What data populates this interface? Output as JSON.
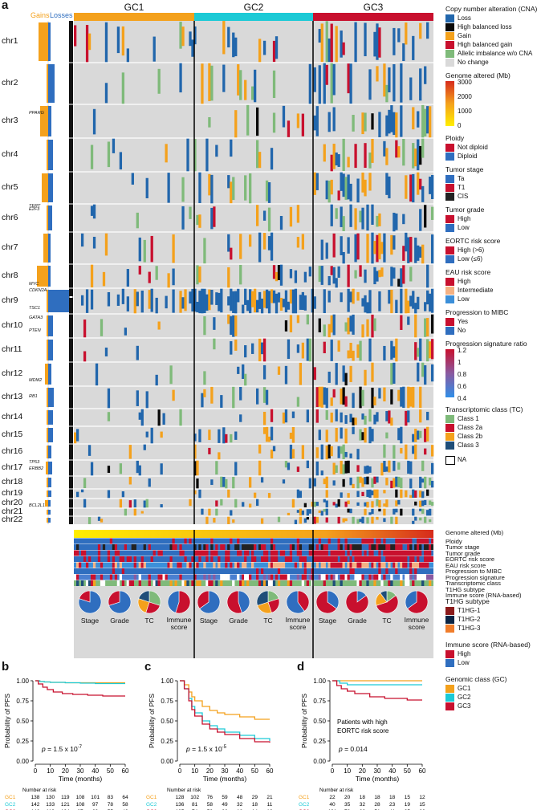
{
  "panel_labels": {
    "a": "a",
    "b": "b",
    "c": "c",
    "d": "d"
  },
  "cn_profile": {
    "gains": "Gains",
    "losses": "Losses"
  },
  "groups": [
    "GC1",
    "GC2",
    "GC3"
  ],
  "chromosomes": [
    "chr1",
    "chr2",
    "chr3",
    "chr4",
    "chr5",
    "chr6",
    "chr7",
    "chr8",
    "chr9",
    "chr10",
    "chr11",
    "chr12",
    "chr13",
    "chr14",
    "chr15",
    "chr16",
    "chr17",
    "chr18",
    "chr19",
    "chr20",
    "chr21",
    "chr22"
  ],
  "genes": [
    "PPARG",
    "TERT",
    "E2F3",
    "MYC",
    "CDKN2A",
    "TSC1",
    "GATA3",
    "PTEN",
    "MDM2",
    "RB1",
    "TP53",
    "ERBB2",
    "BCL2L1"
  ],
  "colors": {
    "loss": "#2166ac",
    "high_loss": "#0a0a0a",
    "gain": "#f4a11c",
    "high_gain": "#c8102e",
    "ai": "#7fba7a",
    "nochange": "#d9d9d9",
    "gc1": "#f4a11c",
    "gc2": "#1ccad6",
    "gc3": "#c8102e",
    "tc1": "#7fba7a",
    "tc2a": "#c8102e",
    "tc2b": "#f4a11c",
    "tc3": "#1f4e79",
    "t1hg1": "#8b1a1a",
    "t1hg2": "#0b2545",
    "t1hg3": "#f07d2b",
    "blue": "#2f6ebf",
    "red": "#c8102e",
    "orange": "#f4a11c",
    "lightblue": "#3b8fd9",
    "black": "#222"
  },
  "legend": {
    "cna": {
      "title": "Copy number alteration (CNA)",
      "items": [
        "Loss",
        "High balanced loss",
        "Gain",
        "High balanced gain",
        "Allelic imbalance w/o CNA",
        "No change"
      ]
    },
    "genome_altered": {
      "title": "Genome altered (Mb)",
      "ticks": [
        "3000",
        "2000",
        "1000",
        "0"
      ]
    },
    "ploidy": {
      "title": "Ploidy",
      "items": [
        "Not diploid",
        "Diploid"
      ]
    },
    "tumor_stage": {
      "title": "Tumor stage",
      "items": [
        "Ta",
        "T1",
        "CIS"
      ]
    },
    "tumor_grade": {
      "title": "Tumor grade",
      "items": [
        "High",
        "Low"
      ]
    },
    "eortc": {
      "title": "EORTC risk score",
      "items": [
        "High (>6)",
        "Low (≤6)"
      ]
    },
    "eau": {
      "title": "EAU risk score",
      "items": [
        "High",
        "Intermediate",
        "Low"
      ]
    },
    "progression": {
      "title": "Progression to MIBC",
      "items": [
        "Yes",
        "No"
      ]
    },
    "prog_sig": {
      "title": "Progression signature ratio",
      "ticks": [
        "1.2",
        "1",
        "0.8",
        "0.6",
        "0.4"
      ]
    },
    "tc": {
      "title": "Transcriptomic class (TC)",
      "items": [
        "Class 1",
        "Class 2a",
        "Class 2b",
        "Class 3"
      ]
    },
    "na": "NA",
    "t1hg": {
      "title": "T1HG subtype",
      "items": [
        "T1HG-1",
        "T1HG-2",
        "T1HG-3"
      ]
    },
    "immune": {
      "title": "Immune score (RNA-based)",
      "items": [
        "High",
        "Low"
      ]
    },
    "gc": {
      "title": "Genomic class (GC)",
      "items": [
        "GC1",
        "GC2",
        "GC3"
      ]
    }
  },
  "tracks": [
    "Genome altered (Mb)",
    "Ploidy",
    "Tumor stage",
    "Tumor grade",
    "EORTC risk score",
    "EAU risk score",
    "Progression to MIBC",
    "Progression signature",
    "Transcriptomic class",
    "T1HG subtype",
    "Immune score (RNA-based)"
  ],
  "pie_labels": [
    "Stage",
    "Grade",
    "TC",
    "Immune score"
  ],
  "chart_data": [
    {
      "type": "line",
      "panel": "b",
      "ylabel": "Probability of PFS",
      "xlabel": "Time (months)",
      "xlim": [
        0,
        60
      ],
      "ylim": [
        0,
        1
      ],
      "xticks": [
        "0",
        "10",
        "20",
        "30",
        "40",
        "50",
        "60"
      ],
      "yticks": [
        "0.00",
        "0.25",
        "0.50",
        "0.75",
        "1.00"
      ],
      "annotation": "p = 1.5 x 10",
      "annotation_exp": "-7",
      "series": [
        {
          "name": "GC1",
          "x": [
            0,
            3,
            6,
            10,
            20,
            30,
            40,
            50,
            60
          ],
          "y": [
            1,
            0.99,
            0.985,
            0.98,
            0.975,
            0.975,
            0.975,
            0.975,
            0.975
          ]
        },
        {
          "name": "GC2",
          "x": [
            0,
            3,
            6,
            10,
            20,
            30,
            40,
            50,
            60
          ],
          "y": [
            1,
            0.99,
            0.985,
            0.98,
            0.975,
            0.97,
            0.965,
            0.965,
            0.965
          ]
        },
        {
          "name": "GC3",
          "x": [
            0,
            2,
            5,
            8,
            12,
            18,
            25,
            35,
            45,
            60
          ],
          "y": [
            1,
            0.96,
            0.92,
            0.89,
            0.86,
            0.84,
            0.83,
            0.82,
            0.81,
            0.81
          ]
        }
      ],
      "risk_title": "Number at risk",
      "risk": {
        "GC1": [
          "138",
          "130",
          "119",
          "108",
          "101",
          "83",
          "64"
        ],
        "GC2": [
          "142",
          "133",
          "121",
          "108",
          "97",
          "78",
          "58"
        ],
        "GC3": [
          "146",
          "119",
          "104",
          "87",
          "69",
          "55",
          "43"
        ]
      }
    },
    {
      "type": "line",
      "panel": "c",
      "ylabel": "Probability of PFS",
      "xlabel": "Time (months)",
      "xlim": [
        0,
        60
      ],
      "ylim": [
        0,
        1
      ],
      "xticks": [
        "0",
        "10",
        "20",
        "30",
        "40",
        "50",
        "60"
      ],
      "yticks": [
        "0.00",
        "0.25",
        "0.50",
        "0.75",
        "1.00"
      ],
      "annotation": "p = 1.5 x 10",
      "annotation_exp": "-5",
      "series": [
        {
          "name": "GC1",
          "x": [
            0,
            3,
            6,
            8,
            10,
            15,
            20,
            25,
            30,
            40,
            50,
            60
          ],
          "y": [
            1,
            0.95,
            0.86,
            0.8,
            0.75,
            0.68,
            0.63,
            0.6,
            0.58,
            0.55,
            0.52,
            0.52
          ]
        },
        {
          "name": "GC2",
          "x": [
            0,
            3,
            6,
            8,
            10,
            15,
            20,
            25,
            30,
            40,
            50,
            60
          ],
          "y": [
            1,
            0.9,
            0.78,
            0.68,
            0.6,
            0.5,
            0.44,
            0.4,
            0.36,
            0.32,
            0.28,
            0.25
          ]
        },
        {
          "name": "GC3",
          "x": [
            0,
            3,
            6,
            8,
            10,
            15,
            20,
            25,
            30,
            40,
            50,
            60
          ],
          "y": [
            1,
            0.9,
            0.75,
            0.64,
            0.56,
            0.46,
            0.4,
            0.36,
            0.33,
            0.28,
            0.24,
            0.23
          ]
        }
      ],
      "risk_title": "Number at risk",
      "risk": {
        "GC1": [
          "128",
          "102",
          "76",
          "59",
          "48",
          "29",
          "21"
        ],
        "GC2": [
          "136",
          "81",
          "58",
          "49",
          "32",
          "18",
          "11"
        ],
        "GC3": [
          "135",
          "74",
          "52",
          "36",
          "18",
          "14",
          "12"
        ]
      }
    },
    {
      "type": "line",
      "panel": "d",
      "ylabel": "Probability of PFS",
      "xlabel": "Time (months)",
      "xlim": [
        0,
        60
      ],
      "ylim": [
        0,
        1
      ],
      "xticks": [
        "0",
        "10",
        "20",
        "30",
        "40",
        "50",
        "60"
      ],
      "yticks": [
        "0.00",
        "0.25",
        "0.50",
        "0.75",
        "1.00"
      ],
      "annotation": "p = 0.014",
      "annotation_exp": "",
      "note": "Patients with high EORTC risk score",
      "series": [
        {
          "name": "GC1",
          "x": [
            0,
            60
          ],
          "y": [
            1,
            1
          ]
        },
        {
          "name": "GC2",
          "x": [
            0,
            5,
            10,
            60
          ],
          "y": [
            1,
            0.97,
            0.95,
            0.95
          ]
        },
        {
          "name": "GC3",
          "x": [
            0,
            3,
            6,
            10,
            15,
            25,
            35,
            50,
            60
          ],
          "y": [
            1,
            0.94,
            0.9,
            0.87,
            0.84,
            0.8,
            0.78,
            0.76,
            0.76
          ]
        }
      ],
      "risk_title": "Number at risk",
      "risk": {
        "GC1": [
          "22",
          "20",
          "18",
          "18",
          "18",
          "15",
          "12"
        ],
        "GC2": [
          "40",
          "35",
          "32",
          "28",
          "23",
          "19",
          "15"
        ],
        "GC3": [
          "101",
          "78",
          "66",
          "51",
          "41",
          "35",
          "26"
        ]
      }
    }
  ]
}
